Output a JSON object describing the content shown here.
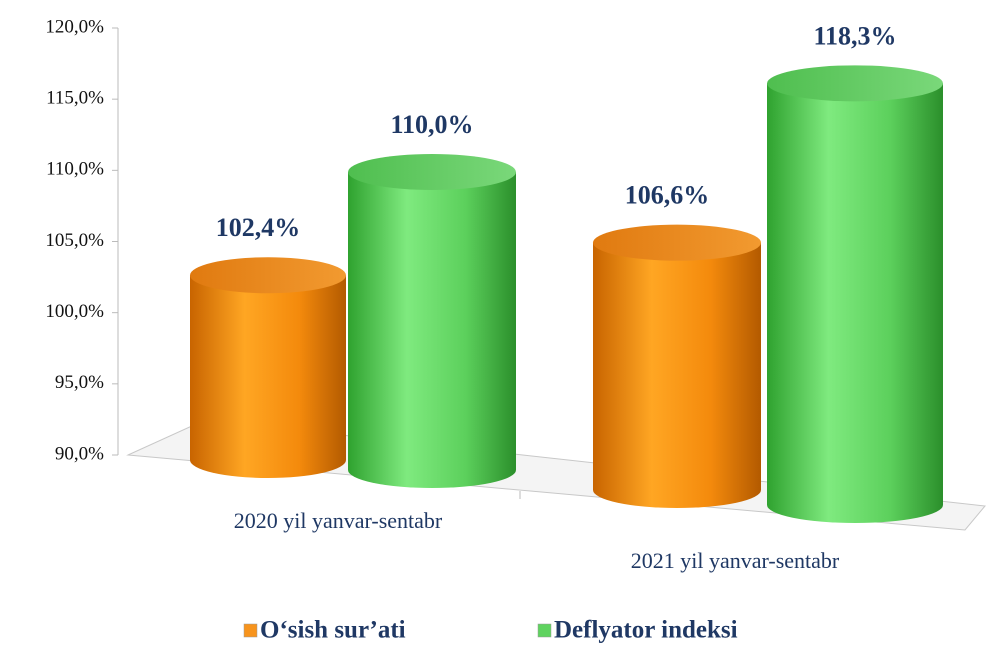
{
  "chart_data": {
    "type": "bar3d",
    "categories": [
      "2020 yil yanvar-sentabr",
      "2021 yil yanvar-sentabr"
    ],
    "series": [
      {
        "name": "O‘sish sur’ati",
        "color": "#f7941d",
        "values": [
          102.4,
          106.6
        ],
        "value_labels": [
          "102,4%",
          "106,6%"
        ]
      },
      {
        "name": "Deflyator indeksi",
        "color": "#5fd35f",
        "values": [
          110.0,
          118.3
        ],
        "value_labels": [
          "110,0%",
          "118,3%"
        ]
      }
    ],
    "ylim": [
      90,
      120
    ],
    "yticks": [
      {
        "value": 90,
        "label": "90,0%"
      },
      {
        "value": 95,
        "label": "95,0%"
      },
      {
        "value": 100,
        "label": "100,0%"
      },
      {
        "value": 105,
        "label": "105,0%"
      },
      {
        "value": 110,
        "label": "110,0%"
      },
      {
        "value": 115,
        "label": "115,0%"
      },
      {
        "value": 120,
        "label": "120,0%"
      }
    ],
    "legend": "bottom"
  }
}
